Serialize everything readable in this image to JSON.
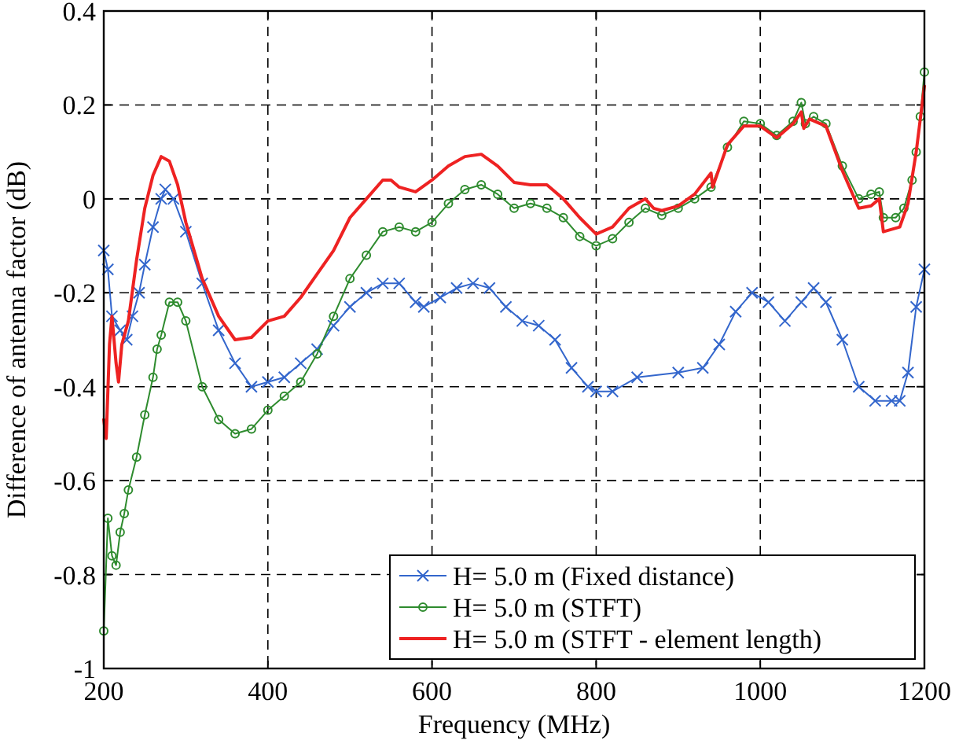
{
  "chart_data": {
    "type": "line",
    "xlabel": "Frequency (MHz)",
    "ylabel": "Difference of antenna factor (dB)",
    "xlim": [
      200,
      1200
    ],
    "ylim": [
      -1,
      0.4
    ],
    "xticks": [
      200,
      400,
      600,
      800,
      1000,
      1200
    ],
    "yticks": [
      -1,
      -0.8,
      -0.6,
      -0.4,
      -0.2,
      0,
      0.2,
      0.4
    ],
    "grid": true,
    "legend": "bottom right",
    "line_style": "solid",
    "series": [
      {
        "name": "H= 5.0 m (Fixed distance)",
        "color": "#3366cc",
        "marker": "cross",
        "x": [
          200,
          205,
          210,
          220,
          228,
          235,
          243,
          250,
          260,
          270,
          275,
          285,
          300,
          320,
          340,
          360,
          380,
          400,
          420,
          440,
          460,
          480,
          500,
          520,
          540,
          560,
          580,
          590,
          610,
          630,
          650,
          670,
          690,
          710,
          730,
          750,
          770,
          790,
          800,
          820,
          850,
          900,
          930,
          950,
          970,
          990,
          1010,
          1030,
          1050,
          1065,
          1080,
          1100,
          1120,
          1140,
          1160,
          1170,
          1180,
          1190,
          1200
        ],
        "values": [
          -0.11,
          -0.15,
          -0.25,
          -0.28,
          -0.3,
          -0.25,
          -0.2,
          -0.14,
          -0.06,
          0,
          0.02,
          0,
          -0.07,
          -0.18,
          -0.28,
          -0.35,
          -0.4,
          -0.39,
          -0.38,
          -0.35,
          -0.32,
          -0.27,
          -0.23,
          -0.2,
          -0.18,
          -0.18,
          -0.22,
          -0.23,
          -0.21,
          -0.19,
          -0.18,
          -0.19,
          -0.23,
          -0.26,
          -0.27,
          -0.3,
          -0.36,
          -0.4,
          -0.41,
          -0.41,
          -0.38,
          -0.37,
          -0.36,
          -0.31,
          -0.24,
          -0.2,
          -0.22,
          -0.26,
          -0.22,
          -0.19,
          -0.22,
          -0.3,
          -0.4,
          -0.43,
          -0.43,
          -0.43,
          -0.37,
          -0.23,
          -0.15
        ]
      },
      {
        "name": "H= 5.0 m (STFT)",
        "color": "#2e8b2e",
        "marker": "circle",
        "x": [
          200,
          205,
          210,
          215,
          220,
          225,
          230,
          240,
          250,
          260,
          265,
          270,
          280,
          290,
          300,
          320,
          340,
          360,
          380,
          400,
          420,
          440,
          460,
          480,
          500,
          520,
          540,
          560,
          580,
          600,
          620,
          640,
          660,
          680,
          700,
          720,
          740,
          760,
          780,
          800,
          820,
          840,
          860,
          880,
          900,
          920,
          940,
          960,
          980,
          1000,
          1020,
          1040,
          1050,
          1055,
          1065,
          1080,
          1100,
          1120,
          1135,
          1145,
          1150,
          1165,
          1175,
          1185,
          1190,
          1195,
          1200
        ],
        "values": [
          -0.92,
          -0.68,
          -0.76,
          -0.78,
          -0.71,
          -0.67,
          -0.62,
          -0.55,
          -0.46,
          -0.38,
          -0.32,
          -0.29,
          -0.22,
          -0.22,
          -0.26,
          -0.4,
          -0.47,
          -0.5,
          -0.49,
          -0.45,
          -0.42,
          -0.39,
          -0.33,
          -0.25,
          -0.17,
          -0.12,
          -0.07,
          -0.06,
          -0.07,
          -0.05,
          -0.01,
          0.02,
          0.03,
          0.01,
          -0.02,
          -0.01,
          -0.02,
          -0.04,
          -0.08,
          -0.1,
          -0.085,
          -0.05,
          -0.02,
          -0.035,
          -0.02,
          0,
          0.025,
          0.11,
          0.165,
          0.16,
          0.135,
          0.165,
          0.205,
          0.16,
          0.175,
          0.16,
          0.07,
          0,
          0.01,
          0.015,
          -0.04,
          -0.04,
          -0.02,
          0.04,
          0.1,
          0.175,
          0.27
        ]
      },
      {
        "name": "H= 5.0 m (STFT - element length)",
        "color": "#ee2222",
        "marker": "none",
        "x": [
          200,
          203,
          207,
          210,
          215,
          218,
          222,
          230,
          240,
          250,
          260,
          270,
          280,
          290,
          300,
          320,
          340,
          360,
          380,
          400,
          420,
          440,
          460,
          480,
          500,
          520,
          540,
          550,
          560,
          580,
          600,
          620,
          640,
          660,
          680,
          700,
          720,
          740,
          760,
          780,
          800,
          820,
          840,
          860,
          870,
          880,
          900,
          920,
          940,
          942,
          960,
          980,
          1000,
          1020,
          1040,
          1050,
          1053,
          1060,
          1080,
          1100,
          1120,
          1135,
          1145,
          1150,
          1170,
          1180,
          1190,
          1200
        ],
        "values": [
          -0.47,
          -0.51,
          -0.31,
          -0.25,
          -0.35,
          -0.39,
          -0.31,
          -0.26,
          -0.13,
          -0.02,
          0.05,
          0.09,
          0.08,
          0.03,
          -0.05,
          -0.17,
          -0.25,
          -0.3,
          -0.295,
          -0.26,
          -0.25,
          -0.21,
          -0.16,
          -0.11,
          -0.04,
          0,
          0.04,
          0.04,
          0.025,
          0.015,
          0.04,
          0.07,
          0.09,
          0.095,
          0.07,
          0.035,
          0.03,
          0.03,
          0,
          -0.04,
          -0.075,
          -0.06,
          -0.02,
          0,
          -0.02,
          -0.025,
          -0.015,
          0.01,
          0.055,
          0.025,
          0.115,
          0.155,
          0.155,
          0.13,
          0.16,
          0.185,
          0.15,
          0.17,
          0.155,
          0.06,
          -0.02,
          -0.015,
          0,
          -0.07,
          -0.06,
          -0.01,
          0.1,
          0.24
        ]
      }
    ]
  }
}
